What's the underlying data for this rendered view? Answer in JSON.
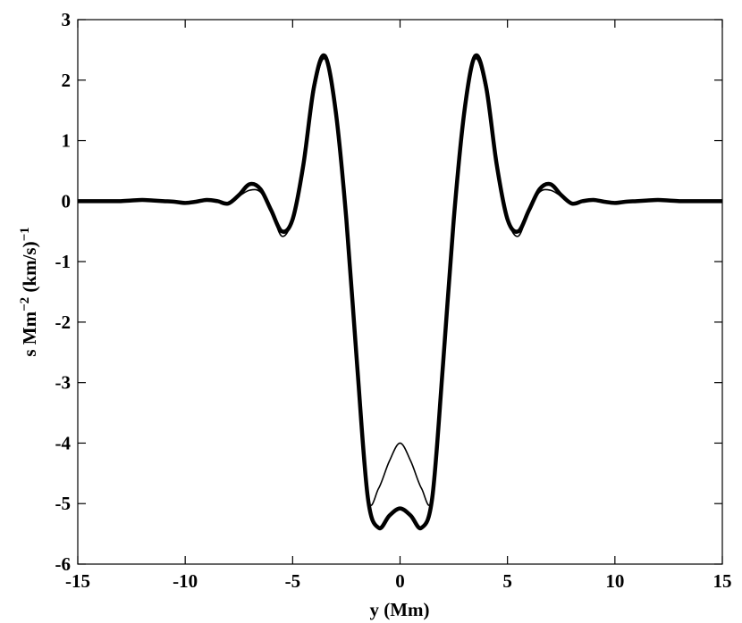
{
  "chart_data": {
    "type": "line",
    "xlabel": "y  (Mm)",
    "ylabel": [
      "s Mm",
      "−2",
      " (km/s)",
      "−1"
    ],
    "x": [
      -15,
      -14.5,
      -14,
      -13.5,
      -13,
      -12.5,
      -12,
      -11.5,
      -11,
      -10.5,
      -10,
      -9.5,
      -9,
      -8.5,
      -8,
      -7.5,
      -7,
      -6.5,
      -6,
      -5.5,
      -5,
      -4.5,
      -4,
      -3.5,
      -3,
      -2.5,
      -2,
      -1.5,
      -1,
      -0.5,
      0,
      0.5,
      1,
      1.5,
      2,
      2.5,
      3,
      3.5,
      4,
      4.5,
      5,
      5.5,
      6,
      6.5,
      7,
      7.5,
      8,
      8.5,
      9,
      9.5,
      10,
      10.5,
      11,
      11.5,
      12,
      12.5,
      13,
      13.5,
      14,
      14.5,
      15
    ],
    "series": [
      {
        "color": "#000000",
        "width": 4.5,
        "values": [
          0,
          0,
          0,
          0,
          0,
          0.01,
          0.02,
          0.01,
          0,
          -0.01,
          -0.03,
          -0.01,
          0.02,
          0,
          -0.04,
          0.1,
          0.28,
          0.2,
          -0.15,
          -0.5,
          -0.3,
          0.6,
          1.9,
          2.4,
          1.5,
          -0.3,
          -2.7,
          -4.9,
          -5.4,
          -5.2,
          -5.08,
          -5.2,
          -5.4,
          -4.9,
          -2.7,
          -0.3,
          1.5,
          2.4,
          1.9,
          0.6,
          -0.3,
          -0.5,
          -0.15,
          0.2,
          0.28,
          0.1,
          -0.04,
          0,
          0.02,
          -0.01,
          -0.03,
          -0.01,
          0,
          0.01,
          0.02,
          0.01,
          0,
          0,
          0,
          0,
          0
        ]
      },
      {
        "color": "#000000",
        "width": 1.6,
        "values": [
          0,
          0,
          0,
          0,
          0,
          0.01,
          0.02,
          0.01,
          0,
          -0.01,
          -0.03,
          -0.01,
          0.02,
          0,
          -0.04,
          0.08,
          0.18,
          0.15,
          -0.15,
          -0.58,
          -0.3,
          0.55,
          1.8,
          2.35,
          1.5,
          -0.3,
          -2.8,
          -4.9,
          -4.75,
          -4.3,
          -4.0,
          -4.3,
          -4.75,
          -4.9,
          -2.8,
          -0.3,
          1.5,
          2.35,
          1.8,
          0.55,
          -0.3,
          -0.58,
          -0.15,
          0.15,
          0.18,
          0.08,
          -0.04,
          0,
          0.02,
          -0.01,
          -0.03,
          -0.01,
          0,
          0.01,
          0.02,
          0.01,
          0,
          0,
          0,
          0,
          0
        ]
      }
    ],
    "xlim": [
      -15,
      15
    ],
    "xticks": [
      -15,
      -10,
      -5,
      0,
      5,
      10,
      15
    ],
    "ylim": [
      -6,
      3
    ],
    "yticks": [
      -6,
      -5,
      -4,
      -3,
      -2,
      -1,
      0,
      1,
      2,
      3
    ],
    "grid": false
  }
}
